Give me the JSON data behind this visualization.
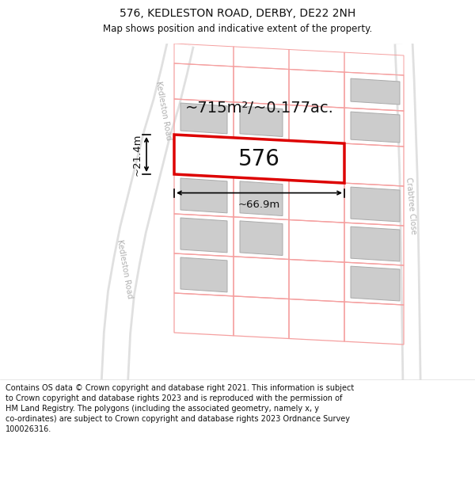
{
  "title": "576, KEDLESTON ROAD, DERBY, DE22 2NH",
  "subtitle": "Map shows position and indicative extent of the property.",
  "footer_lines": [
    "Contains OS data © Crown copyright and database right 2021. This information is subject",
    "to Crown copyright and database rights 2023 and is reproduced with the permission of",
    "HM Land Registry. The polygons (including the associated geometry, namely x, y",
    "co-ordinates) are subject to Crown copyright and database rights 2023 Ordnance Survey",
    "100026316."
  ],
  "area_label": "~715m²/~0.177ac.",
  "width_label": "~66.9m",
  "height_label": "~21.4m",
  "plot_number": "576",
  "bg_color": "#ffffff",
  "property_color": "#dd0000",
  "plot_line_color": "#f5a0a0",
  "building_fill": "#cccccc",
  "building_edge": "#aaaaaa",
  "road_fill": "#e8e8e8",
  "road_edge": "#d0d0d0",
  "road_label_color": "#b0b0b0",
  "dim_color": "#000000",
  "title_fontsize": 10,
  "subtitle_fontsize": 8.5,
  "footer_fontsize": 7.0,
  "area_fontsize": 14,
  "plot_num_fontsize": 20,
  "dim_fontsize": 9.5,
  "road_label_fontsize": 7
}
